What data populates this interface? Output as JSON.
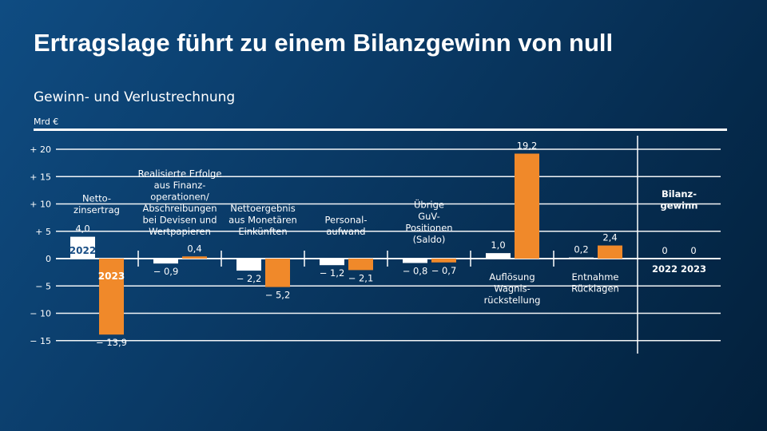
{
  "title": "Ertragslage führt zu einem Bilanzgewinn von null",
  "chart_data": {
    "type": "bar",
    "title": "Gewinn- und Verlustrechnung",
    "ylabel": "Mrd €",
    "ylim": [
      -15,
      20
    ],
    "yticks": [
      20,
      15,
      10,
      5,
      0,
      -5,
      -10,
      -15
    ],
    "ytick_labels": [
      "+ 20",
      "+ 15",
      "+ 10",
      "+  5",
      "0",
      "−  5",
      "− 10",
      "− 15"
    ],
    "grid": true,
    "colors": {
      "2022": "#ffffff",
      "2023": "#f0892a"
    },
    "series_labels": [
      "2022",
      "2023"
    ],
    "categories": [
      {
        "label": [
          "Netto-",
          "zinsertrag"
        ],
        "values": [
          4.0,
          -13.9
        ],
        "value_labels": [
          "4,0",
          "− 13,9"
        ]
      },
      {
        "label": [
          "Realisierte Erfolge",
          "aus Finanz-",
          "operationen/",
          "Abschreibungen",
          "bei Devisen und",
          "Wertpapieren"
        ],
        "values": [
          -0.9,
          0.4
        ],
        "value_labels": [
          "− 0,9",
          "0,4"
        ]
      },
      {
        "label": [
          "Nettoergebnis",
          "aus Monetären",
          "Einkünften"
        ],
        "values": [
          -2.2,
          -5.2
        ],
        "value_labels": [
          "− 2,2",
          "− 5,2"
        ]
      },
      {
        "label": [
          "Personal-",
          "aufwand"
        ],
        "values": [
          -1.2,
          -2.1
        ],
        "value_labels": [
          "− 1,2",
          "− 2,1"
        ]
      },
      {
        "label": [
          "Übrige",
          "GuV-",
          "Positionen",
          "(Saldo)"
        ],
        "values": [
          -0.8,
          -0.7
        ],
        "value_labels": [
          "− 0,8",
          "− 0,7"
        ]
      },
      {
        "label": [
          "Auflösung",
          "Wagnis-",
          "rückstellung"
        ],
        "values": [
          1.0,
          19.2
        ],
        "value_labels": [
          "1,0",
          "19,2"
        ]
      },
      {
        "label": [
          "Entnahme",
          "Rücklagen"
        ],
        "values": [
          0.2,
          2.4
        ],
        "value_labels": [
          "0,2",
          "2,4"
        ]
      }
    ],
    "result": {
      "label": [
        "Bilanz-",
        "gewinn"
      ],
      "values": [
        0,
        0
      ],
      "value_labels": [
        "0",
        "0"
      ],
      "years": [
        "2022",
        "2023"
      ]
    }
  }
}
